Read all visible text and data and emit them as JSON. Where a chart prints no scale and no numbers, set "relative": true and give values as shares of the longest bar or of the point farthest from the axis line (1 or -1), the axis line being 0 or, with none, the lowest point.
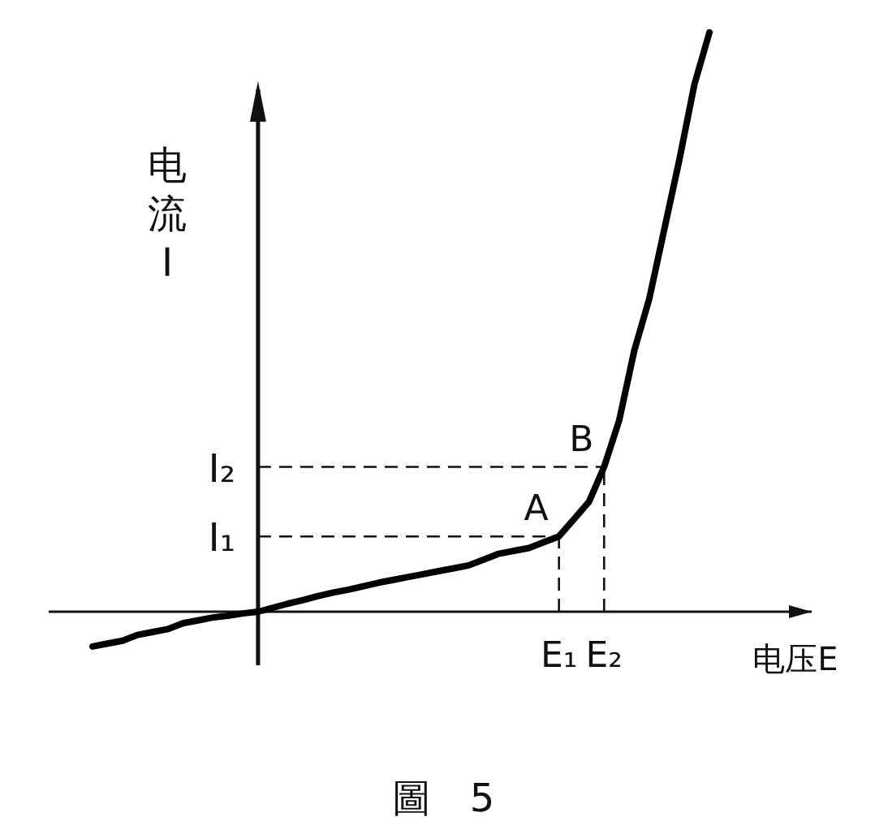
{
  "chart_data": {
    "type": "line",
    "relative": true,
    "xlabel": "电压E",
    "ylabel": "电流I",
    "categories": [
      null,
      null,
      null,
      null,
      null,
      null,
      null,
      null,
      null,
      null,
      null,
      null,
      null,
      null,
      null,
      null,
      null,
      null,
      null,
      null,
      null,
      null,
      null,
      null,
      null,
      null,
      null,
      null,
      null,
      null,
      null,
      "E₁",
      null,
      null,
      "E₂",
      null,
      null,
      null,
      null,
      null,
      null,
      null
    ],
    "series": [
      {
        "color": "#000000",
        "values": [
          -0.06,
          -0.055,
          -0.05,
          -0.04,
          -0.035,
          -0.03,
          -0.02,
          -0.015,
          -0.01,
          -0.007,
          -0.003,
          0,
          0.007,
          0.014,
          0.02,
          0.027,
          0.033,
          0.038,
          0.044,
          0.05,
          0.055,
          0.06,
          0.065,
          0.07,
          0.075,
          0.08,
          0.09,
          0.1,
          0.105,
          0.11,
          0.12,
          0.13,
          0.16,
          0.19,
          0.25,
          0.33,
          0.45,
          0.54,
          0.66,
          0.78,
          0.91,
          1
        ]
      }
    ],
    "marker": "none",
    "line_style": "solid",
    "ref_lines": [
      {
        "axis": "y",
        "value": 0.13,
        "label": "I₁",
        "line_style": "dashed"
      },
      {
        "axis": "y",
        "value": 0.25,
        "label": "I₂",
        "line_style": "dashed"
      },
      {
        "axis": "x",
        "value": "E₁",
        "line_style": "dashed"
      },
      {
        "axis": "x",
        "value": "E₂",
        "line_style": "dashed"
      }
    ],
    "annotations": [
      {
        "text": "A",
        "x": "E₁",
        "y": 0.13
      },
      {
        "text": "B",
        "x": "E₂",
        "y": 0.25
      },
      "圖　5"
    ]
  }
}
